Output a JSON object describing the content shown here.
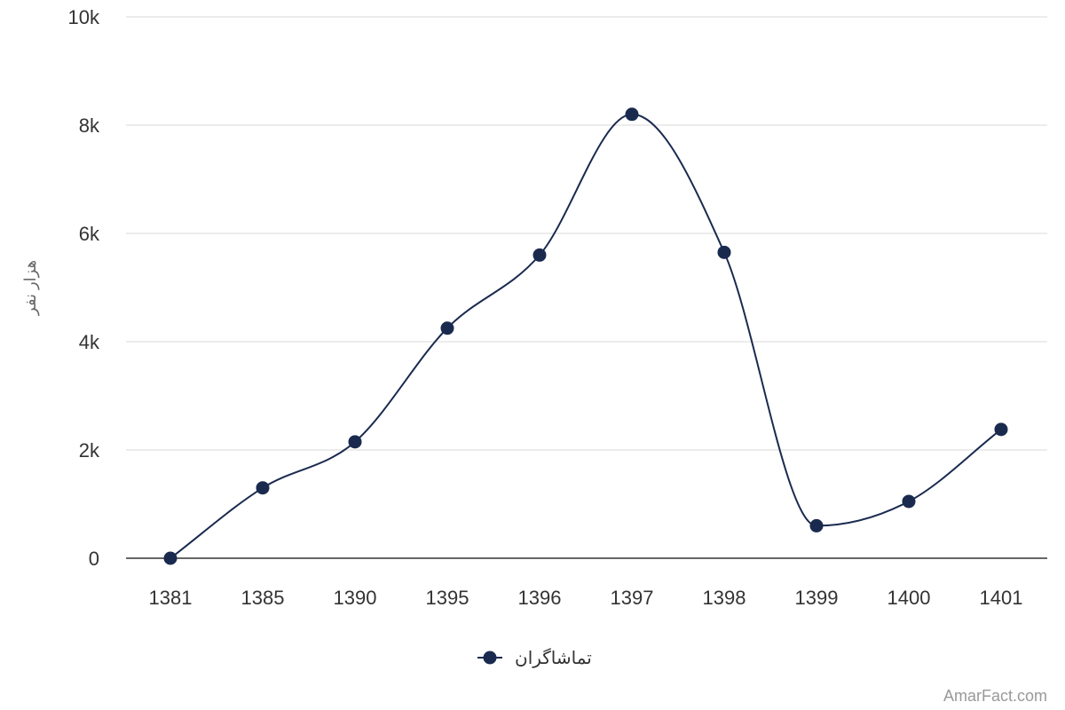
{
  "chart_data": {
    "type": "line",
    "categories": [
      "1381",
      "1385",
      "1390",
      "1395",
      "1396",
      "1397",
      "1398",
      "1399",
      "1400",
      "1401"
    ],
    "series": [
      {
        "name": "تماشاگران",
        "values": [
          0,
          1300,
          2150,
          4250,
          5600,
          8200,
          5650,
          600,
          1050,
          2380
        ]
      }
    ],
    "ylabel": "هزار نفر",
    "xlabel": "",
    "ylim": [
      0,
      10000
    ],
    "yticks": [
      {
        "value": 0,
        "label": "0"
      },
      {
        "value": 2000,
        "label": "2k"
      },
      {
        "value": 4000,
        "label": "4k"
      },
      {
        "value": 6000,
        "label": "6k"
      },
      {
        "value": 8000,
        "label": "8k"
      },
      {
        "value": 10000,
        "label": "10k"
      }
    ],
    "grid": true,
    "legend_position": "bottom-center",
    "colors": {
      "series": "#1a2a4f",
      "grid": "#e6e6e6",
      "axis": "#333333"
    }
  },
  "watermark": "AmarFact.com"
}
